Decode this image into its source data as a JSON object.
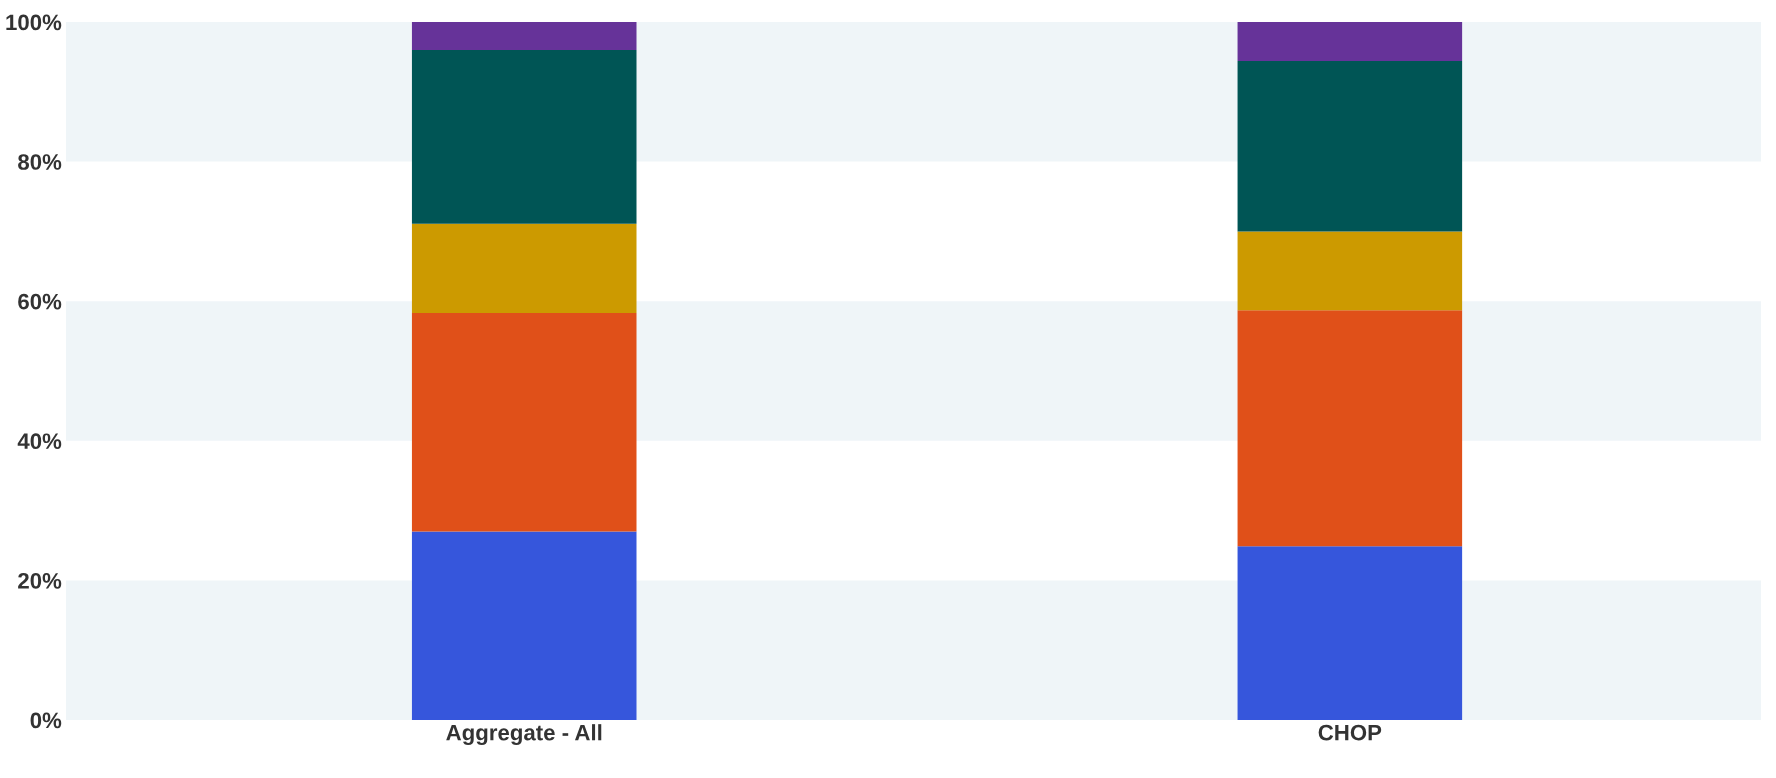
{
  "chart_data": {
    "type": "bar",
    "stacked": true,
    "categories": [
      "Aggregate - All",
      "CHOP"
    ],
    "series": [
      {
        "color": "#3656dc",
        "values": [
          27.0,
          24.9
        ]
      },
      {
        "color": "#e05019",
        "values": [
          31.3,
          33.8
        ]
      },
      {
        "color": "#cc9a00",
        "values": [
          12.8,
          11.3
        ]
      },
      {
        "color": "#005555",
        "values": [
          24.9,
          24.4
        ]
      },
      {
        "color": "#663399",
        "values": [
          4.0,
          5.6
        ]
      }
    ],
    "ylim": [
      0,
      100
    ],
    "yticks": [
      {
        "value": 0,
        "label": "0%"
      },
      {
        "value": 20,
        "label": "20%"
      },
      {
        "value": 40,
        "label": "40%"
      },
      {
        "value": 60,
        "label": "60%"
      },
      {
        "value": 80,
        "label": "80%"
      },
      {
        "value": 100,
        "label": "100%"
      }
    ],
    "bands": [
      {
        "axis": "y",
        "from": 0,
        "to": 20,
        "color": "#eff5f8"
      },
      {
        "axis": "y",
        "from": 40,
        "to": 60,
        "color": "#eff5f8"
      },
      {
        "axis": "y",
        "from": 80,
        "to": 100,
        "color": "#eff5f8"
      }
    ],
    "grid": false,
    "legend": false
  }
}
